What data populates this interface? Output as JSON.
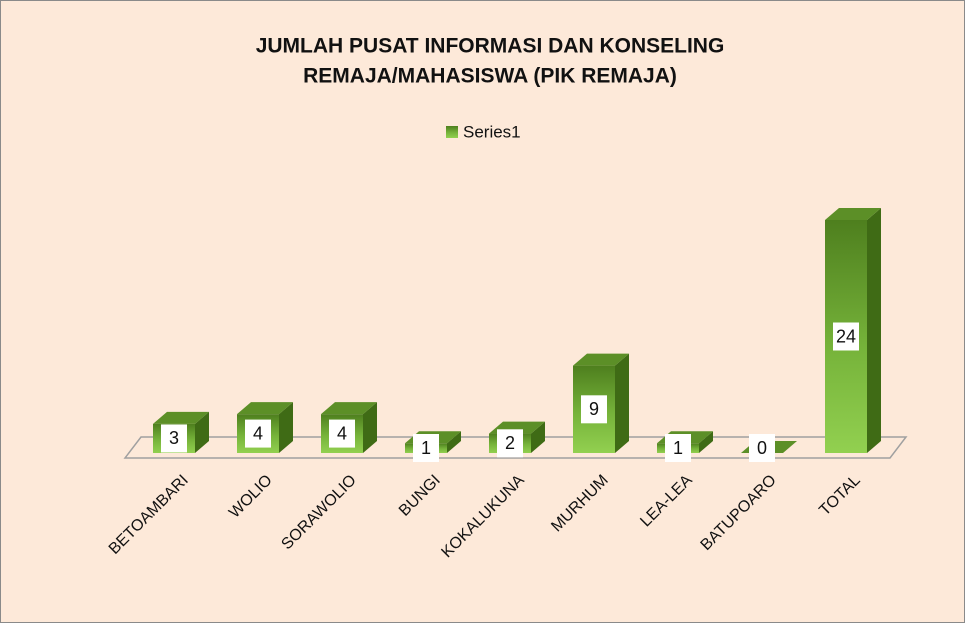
{
  "chart_data": {
    "type": "bar3d",
    "title": "JUMLAH PUSAT INFORMASI DAN KONSELING REMAJA/MAHASISWA (PIK REMAJA)",
    "categories": [
      "BETOAMBARI",
      "WOLIO",
      "SORAWOLIO",
      "BUNGI",
      "KOKALUKUNA",
      "MURHUM",
      "LEA-LEA",
      "BATUPOARO",
      "TOTAL"
    ],
    "series": [
      {
        "name": "Series1",
        "color": "#92d050",
        "values": [
          3,
          4,
          4,
          1,
          2,
          9,
          1,
          0,
          24
        ]
      }
    ],
    "legend": "top"
  }
}
